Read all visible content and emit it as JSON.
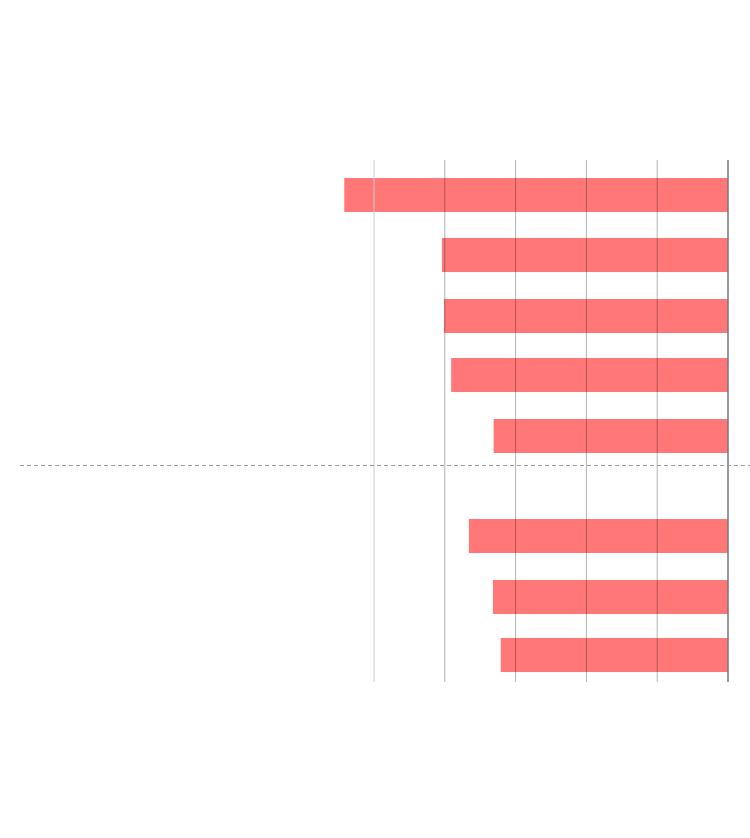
{
  "chart_data": {
    "type": "bar",
    "orientation": "horizontal",
    "title": "",
    "xlabel": "",
    "ylabel": "",
    "xlim": [
      -10,
      0
    ],
    "gridlines_x": [
      -5,
      -4,
      -3,
      -2,
      -1,
      0
    ],
    "grid": true,
    "bar_color": "#ff7777",
    "reference_line": {
      "style": "dashed",
      "color": "#999999",
      "between_bars": [
        5,
        6
      ]
    },
    "values": [
      -5.42,
      -4.04,
      -4.01,
      -3.91,
      -3.31,
      -3.66,
      -3.32,
      -3.21
    ]
  }
}
